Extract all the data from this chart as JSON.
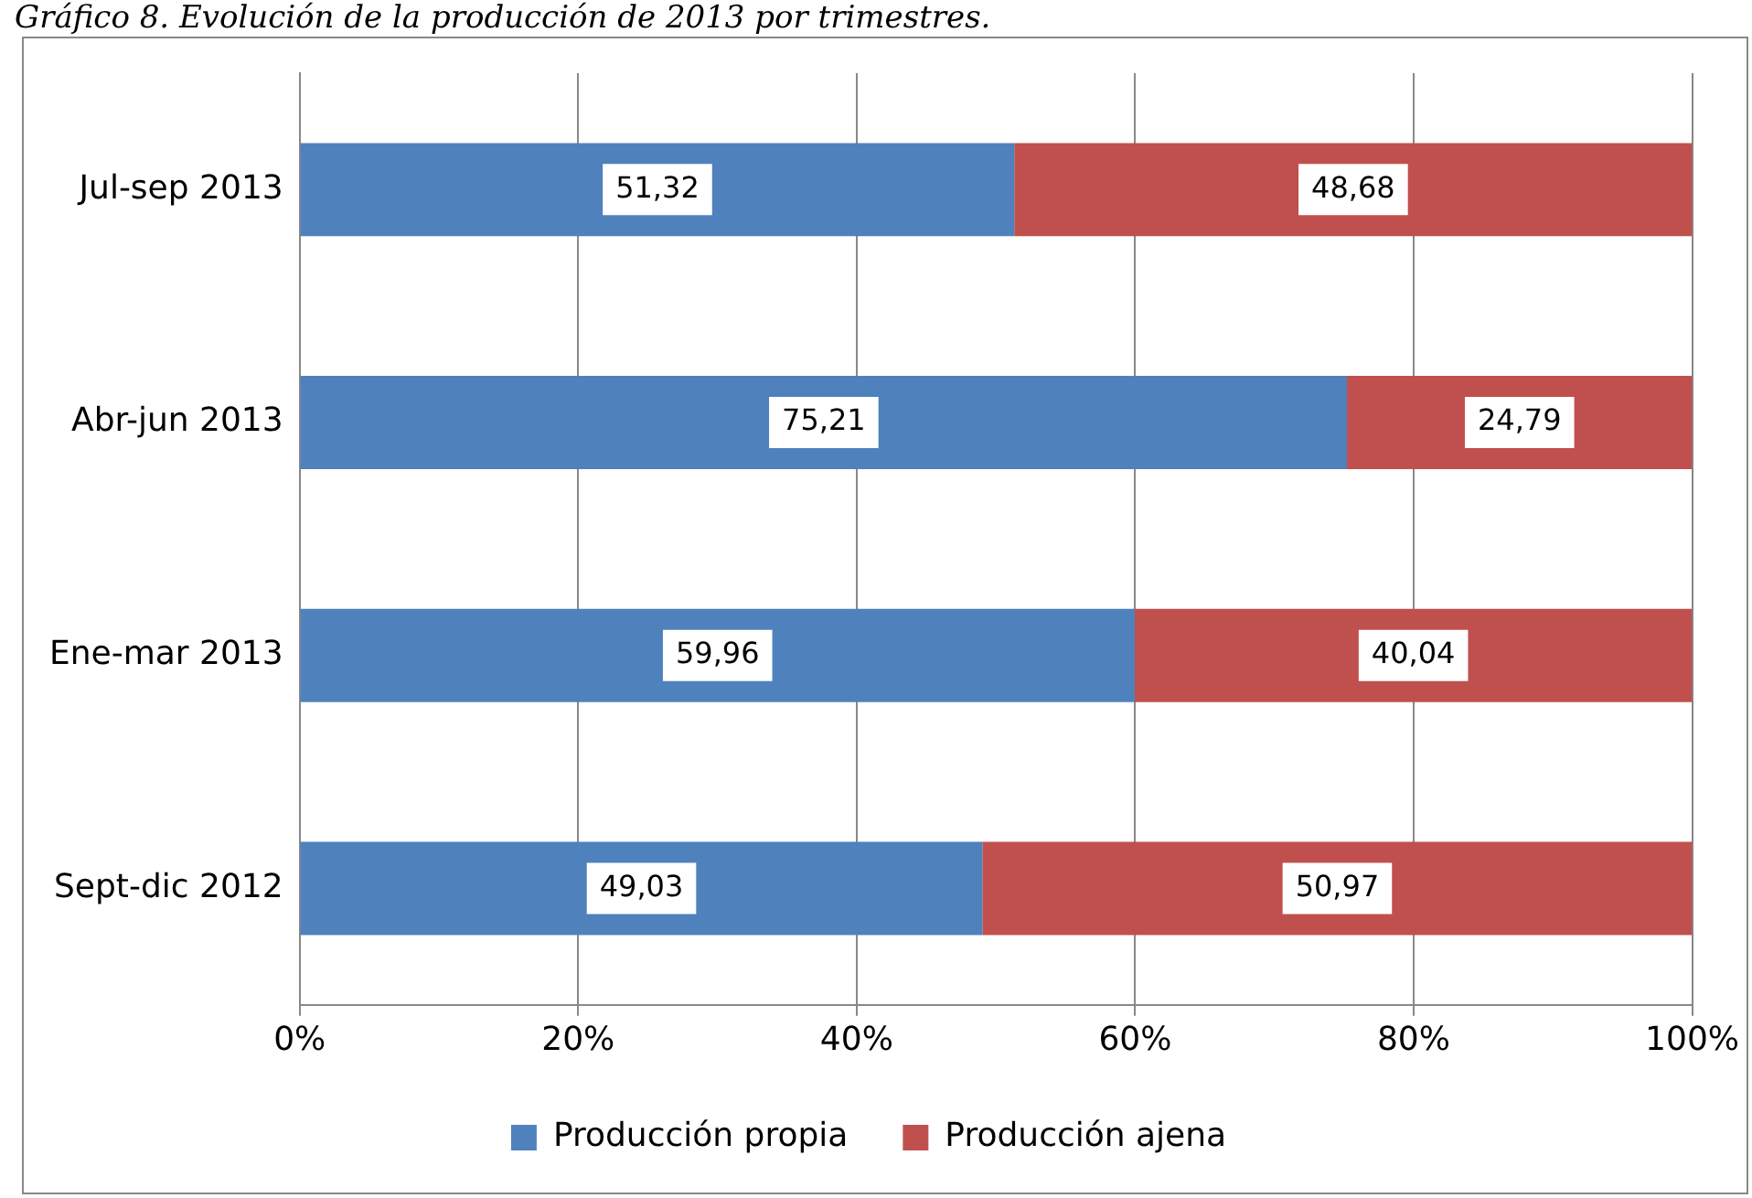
{
  "chart_data": {
    "type": "bar",
    "title": "Gráfico 8. Evolución de la producción de 2013 por trimestres.",
    "orientation": "horizontal",
    "stacked": true,
    "categories": [
      "Jul-sep 2013",
      "Abr-jun 2013",
      "Ene-mar 2013",
      "Sept-dic 2012"
    ],
    "series": [
      {
        "name": "Producción propia",
        "color": "#4f81bd",
        "values": [
          51.32,
          75.21,
          59.96,
          49.03
        ],
        "value_labels": [
          "51,32",
          "75,21",
          "59,96",
          "49,03"
        ]
      },
      {
        "name": "Producción ajena",
        "color": "#c0504d",
        "values": [
          48.68,
          24.79,
          40.04,
          50.97
        ],
        "value_labels": [
          "48,68",
          "24,79",
          "40,04",
          "50,97"
        ]
      }
    ],
    "xlim": [
      0,
      100
    ],
    "xticks": [
      {
        "value": 0,
        "label": "0%"
      },
      {
        "value": 20,
        "label": "20%"
      },
      {
        "value": 40,
        "label": "40%"
      },
      {
        "value": 60,
        "label": "60%"
      },
      {
        "value": 80,
        "label": "80%"
      },
      {
        "value": 100,
        "label": "100%"
      }
    ],
    "grid": "x",
    "legend": "bottom"
  }
}
